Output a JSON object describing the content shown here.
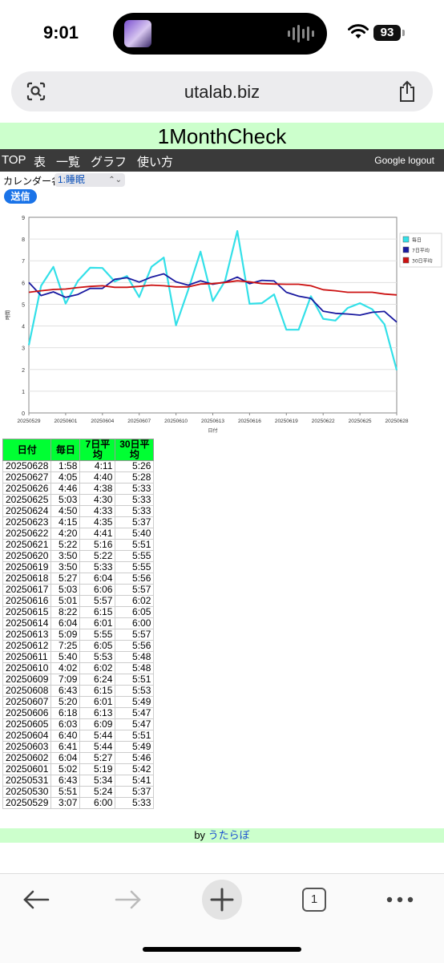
{
  "status": {
    "time": "9:01",
    "battery": "93"
  },
  "browser": {
    "url": "utalab.biz"
  },
  "page": {
    "title": "1MonthCheck"
  },
  "nav": {
    "items": [
      "TOP",
      "表",
      "一覧",
      "グラフ",
      "使い方"
    ],
    "logout": "Google logout"
  },
  "form": {
    "calendar_label": "カレンダー名",
    "calendar_value": "1:睡眠",
    "submit_label": "送信"
  },
  "chart_data": {
    "type": "line",
    "ylabel": "時間",
    "xlabel": "日付",
    "ylim": [
      0,
      9
    ],
    "x": [
      "20250529",
      "20250530",
      "20250531",
      "20250601",
      "20250602",
      "20250603",
      "20250604",
      "20250605",
      "20250606",
      "20250607",
      "20250608",
      "20250609",
      "20250610",
      "20250611",
      "20250612",
      "20250613",
      "20250614",
      "20250615",
      "20250616",
      "20250617",
      "20250618",
      "20250619",
      "20250620",
      "20250621",
      "20250622",
      "20250623",
      "20250624",
      "20250625",
      "20250626",
      "20250627",
      "20250628"
    ],
    "x_tick_labels": [
      "20250529",
      "20250601",
      "20250604",
      "20250607",
      "20250610",
      "20250613",
      "20250616",
      "20250619",
      "20250622",
      "20250625",
      "20250628"
    ],
    "y_ticks": [
      0,
      1,
      2,
      3,
      4,
      5,
      6,
      7,
      8,
      9
    ],
    "legend_position": "right",
    "series": [
      {
        "name": "毎日",
        "color": "#33e0e8",
        "values": [
          3.12,
          5.85,
          6.72,
          5.03,
          6.07,
          6.68,
          6.67,
          6.05,
          6.3,
          5.33,
          6.72,
          7.15,
          4.03,
          5.67,
          7.42,
          5.15,
          6.07,
          8.37,
          5.02,
          5.05,
          5.45,
          3.83,
          3.83,
          5.37,
          4.33,
          4.25,
          4.83,
          5.05,
          4.77,
          4.08,
          1.97
        ]
      },
      {
        "name": "7日平均",
        "color": "#1a1aa0",
        "values": [
          6.0,
          5.4,
          5.57,
          5.32,
          5.45,
          5.73,
          5.73,
          6.15,
          6.22,
          6.02,
          6.25,
          6.4,
          6.03,
          5.88,
          6.08,
          5.92,
          6.02,
          6.25,
          5.95,
          6.1,
          6.07,
          5.55,
          5.37,
          5.27,
          4.68,
          4.58,
          4.55,
          4.5,
          4.63,
          4.67,
          4.18
        ]
      },
      {
        "name": "30日平均",
        "color": "#cc1111",
        "values": [
          5.55,
          5.62,
          5.68,
          5.7,
          5.77,
          5.82,
          5.85,
          5.78,
          5.78,
          5.82,
          5.88,
          5.85,
          5.8,
          5.8,
          5.93,
          5.95,
          6.0,
          6.08,
          6.03,
          5.95,
          5.93,
          5.92,
          5.92,
          5.85,
          5.67,
          5.62,
          5.55,
          5.55,
          5.55,
          5.47,
          5.43
        ]
      }
    ]
  },
  "table": {
    "headers": [
      "日付",
      "毎日",
      "7日平均",
      "30日平均"
    ],
    "rows": [
      [
        "20250628",
        "1:58",
        "4:11",
        "5:26"
      ],
      [
        "20250627",
        "4:05",
        "4:40",
        "5:28"
      ],
      [
        "20250626",
        "4:46",
        "4:38",
        "5:33"
      ],
      [
        "20250625",
        "5:03",
        "4:30",
        "5:33"
      ],
      [
        "20250624",
        "4:50",
        "4:33",
        "5:33"
      ],
      [
        "20250623",
        "4:15",
        "4:35",
        "5:37"
      ],
      [
        "20250622",
        "4:20",
        "4:41",
        "5:40"
      ],
      [
        "20250621",
        "5:22",
        "5:16",
        "5:51"
      ],
      [
        "20250620",
        "3:50",
        "5:22",
        "5:55"
      ],
      [
        "20250619",
        "3:50",
        "5:33",
        "5:55"
      ],
      [
        "20250618",
        "5:27",
        "6:04",
        "5:56"
      ],
      [
        "20250617",
        "5:03",
        "6:06",
        "5:57"
      ],
      [
        "20250616",
        "5:01",
        "5:57",
        "6:02"
      ],
      [
        "20250615",
        "8:22",
        "6:15",
        "6:05"
      ],
      [
        "20250614",
        "6:04",
        "6:01",
        "6:00"
      ],
      [
        "20250613",
        "5:09",
        "5:55",
        "5:57"
      ],
      [
        "20250612",
        "7:25",
        "6:05",
        "5:56"
      ],
      [
        "20250611",
        "5:40",
        "5:53",
        "5:48"
      ],
      [
        "20250610",
        "4:02",
        "6:02",
        "5:48"
      ],
      [
        "20250609",
        "7:09",
        "6:24",
        "5:51"
      ],
      [
        "20250608",
        "6:43",
        "6:15",
        "5:53"
      ],
      [
        "20250607",
        "5:20",
        "6:01",
        "5:49"
      ],
      [
        "20250606",
        "6:18",
        "6:13",
        "5:47"
      ],
      [
        "20250605",
        "6:03",
        "6:09",
        "5:47"
      ],
      [
        "20250604",
        "6:40",
        "5:44",
        "5:51"
      ],
      [
        "20250603",
        "6:41",
        "5:44",
        "5:49"
      ],
      [
        "20250602",
        "6:04",
        "5:27",
        "5:46"
      ],
      [
        "20250601",
        "5:02",
        "5:19",
        "5:42"
      ],
      [
        "20250531",
        "6:43",
        "5:34",
        "5:41"
      ],
      [
        "20250530",
        "5:51",
        "5:24",
        "5:37"
      ],
      [
        "20250529",
        "3:07",
        "6:00",
        "5:33"
      ]
    ]
  },
  "footer": {
    "prefix": "by",
    "link": "うたらぼ"
  },
  "toolbar": {
    "tab_count": "1"
  }
}
